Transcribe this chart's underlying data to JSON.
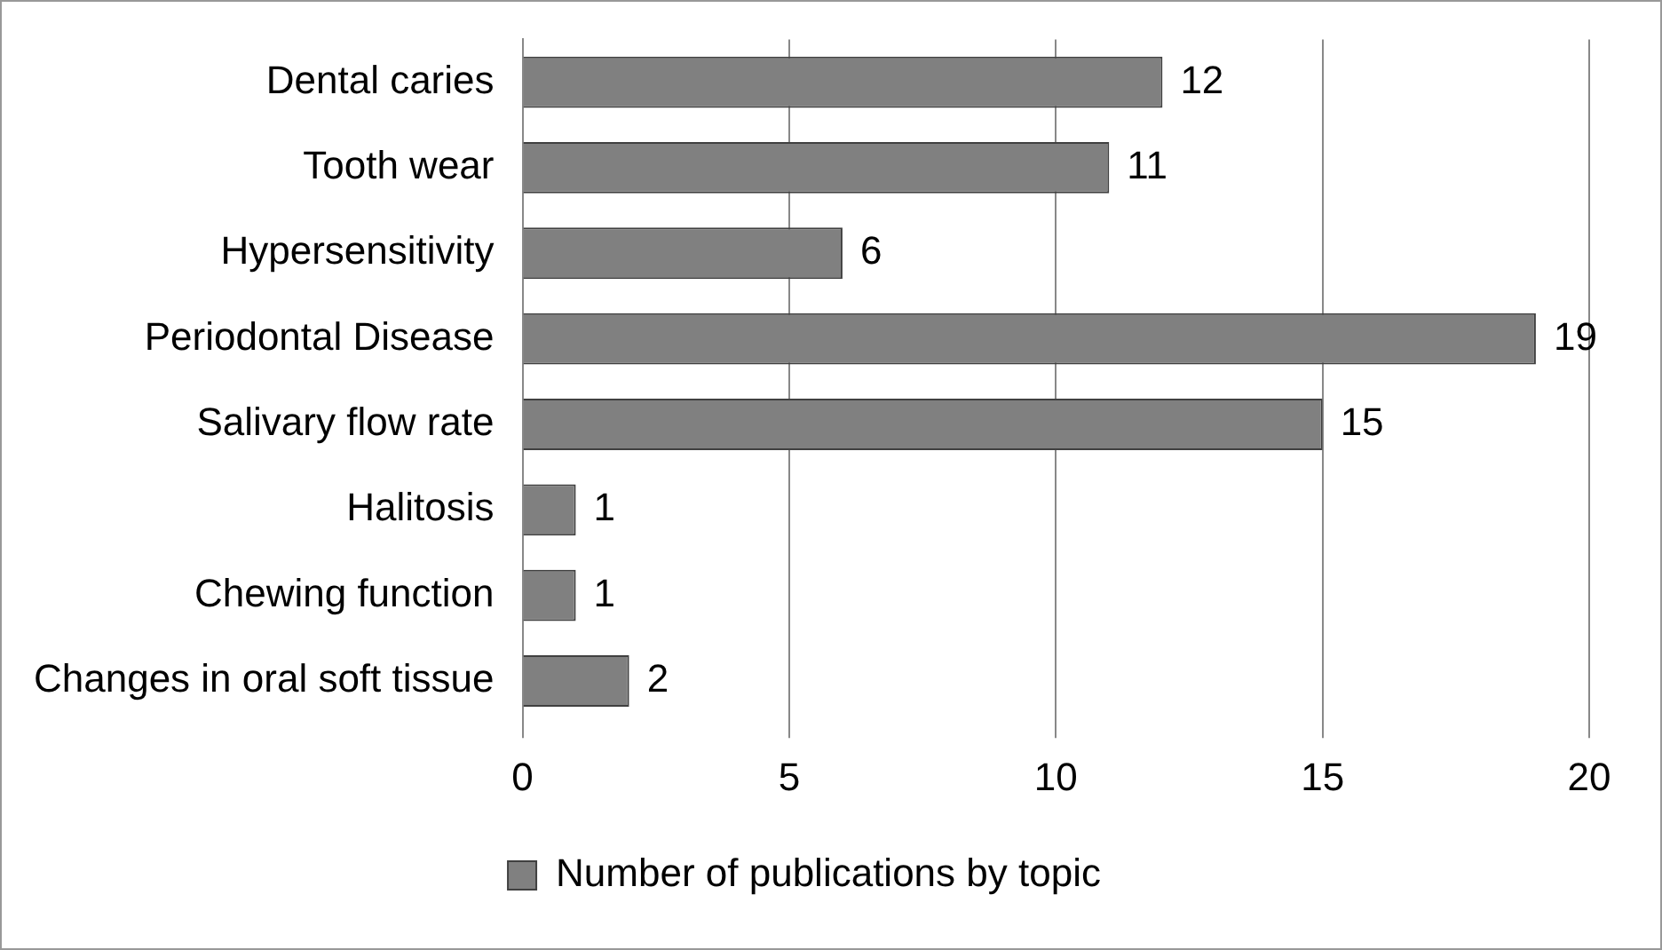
{
  "chart_data": {
    "type": "bar",
    "orientation": "horizontal",
    "categories": [
      "Dental caries",
      "Tooth wear",
      "Hypersensitivity",
      "Periodontal Disease",
      "Salivary flow rate",
      "Halitosis",
      "Chewing function",
      "Changes in oral soft tissue"
    ],
    "series": [
      {
        "name": "Number of publications by topic",
        "color": "#808080",
        "values": [
          12,
          11,
          6,
          19,
          15,
          1,
          1,
          2
        ]
      }
    ],
    "xlim": [
      0,
      20
    ],
    "xticks": [
      0,
      5,
      10,
      15,
      20
    ],
    "grid": "x",
    "legend": "bottom",
    "data_labels": true
  }
}
